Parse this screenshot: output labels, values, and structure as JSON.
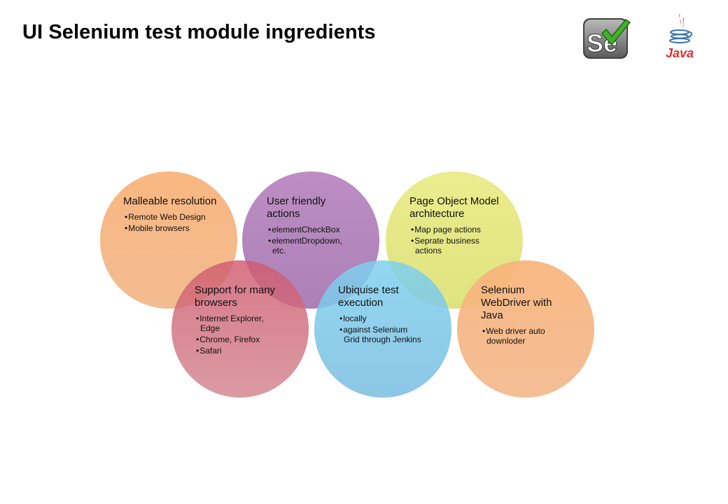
{
  "slide": {
    "title": "UI Selenium test module ingredients",
    "logos": {
      "selenium": "Se",
      "java": "Java"
    }
  },
  "circles": [
    {
      "heading": "Malleable resolution",
      "color": "#f9b37a",
      "bullets": [
        "Remote Web Design",
        "Mobile browsers"
      ]
    },
    {
      "heading": "User friendly actions",
      "color": "#a46fb0",
      "bullets": [
        "elementCheckBox",
        "elementDropdown, etc."
      ]
    },
    {
      "heading": "Page Object Model architecture",
      "color": "#dde26f",
      "bullets": [
        "Map page actions",
        "Seprate business actions"
      ]
    },
    {
      "heading": "Support for many browsers",
      "color": "#cf6b7b",
      "bullets": [
        "Internet Explorer, Edge",
        "Chrome, Firefox",
        "Safari"
      ]
    },
    {
      "heading": "Ubiquise test execution",
      "color": "#7fc8ea",
      "bullets": [
        "locally",
        "against Selenium Grid through Jenkins"
      ]
    },
    {
      "heading": "Selenium WebDriver with Java",
      "color": "#f6b27e",
      "bullets": [
        "Web driver auto downloder"
      ]
    }
  ]
}
